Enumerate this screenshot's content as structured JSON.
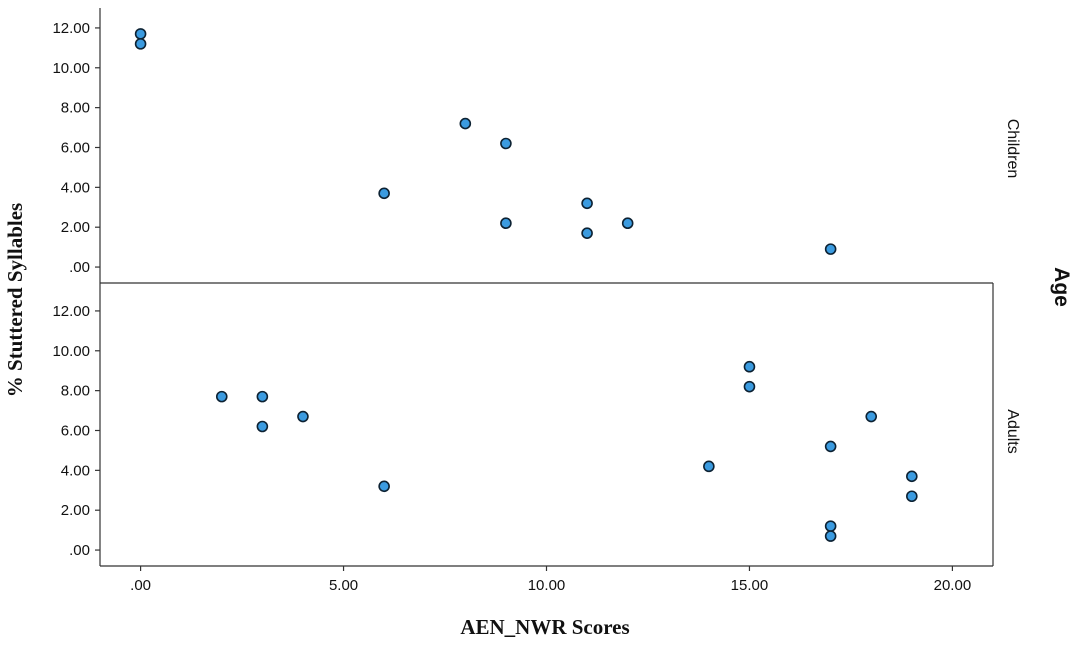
{
  "chart_data": {
    "type": "scatter",
    "xlabel": "AEN_NWR Scores",
    "ylabel": "% Stuttered Syllables",
    "facet_title": "Age",
    "xlim": [
      -1,
      21
    ],
    "ylim": [
      -0.8,
      13
    ],
    "x_ticks": [
      0,
      5,
      10,
      15,
      20
    ],
    "x_tick_labels": [
      ".00",
      "5.00",
      "10.00",
      "15.00",
      "20.00"
    ],
    "y_ticks": [
      0,
      2,
      4,
      6,
      8,
      10,
      12
    ],
    "y_tick_labels": [
      ".00",
      "2.00",
      "4.00",
      "6.00",
      "8.00",
      "10.00",
      "12.00"
    ],
    "marker_color": "#3b9be0",
    "marker_edge_color": "#0d2233",
    "grid": false,
    "panels": [
      {
        "label": "Children",
        "points": [
          {
            "x": 0,
            "y": 11.7
          },
          {
            "x": 0,
            "y": 11.2
          },
          {
            "x": 6,
            "y": 3.7
          },
          {
            "x": 8,
            "y": 7.2
          },
          {
            "x": 9,
            "y": 6.2
          },
          {
            "x": 9,
            "y": 2.2
          },
          {
            "x": 11,
            "y": 3.2
          },
          {
            "x": 11,
            "y": 1.7
          },
          {
            "x": 12,
            "y": 2.2
          },
          {
            "x": 17,
            "y": 0.9
          }
        ]
      },
      {
        "label": "Adults",
        "points": [
          {
            "x": 2,
            "y": 7.7
          },
          {
            "x": 3,
            "y": 7.7
          },
          {
            "x": 3,
            "y": 6.2
          },
          {
            "x": 4,
            "y": 6.7
          },
          {
            "x": 6,
            "y": 3.2
          },
          {
            "x": 14,
            "y": 4.2
          },
          {
            "x": 15,
            "y": 9.2
          },
          {
            "x": 15,
            "y": 8.2
          },
          {
            "x": 17,
            "y": 5.2
          },
          {
            "x": 17,
            "y": 1.2
          },
          {
            "x": 17,
            "y": 0.7
          },
          {
            "x": 18,
            "y": 6.7
          },
          {
            "x": 19,
            "y": 3.7
          },
          {
            "x": 19,
            "y": 2.7
          }
        ]
      }
    ]
  }
}
